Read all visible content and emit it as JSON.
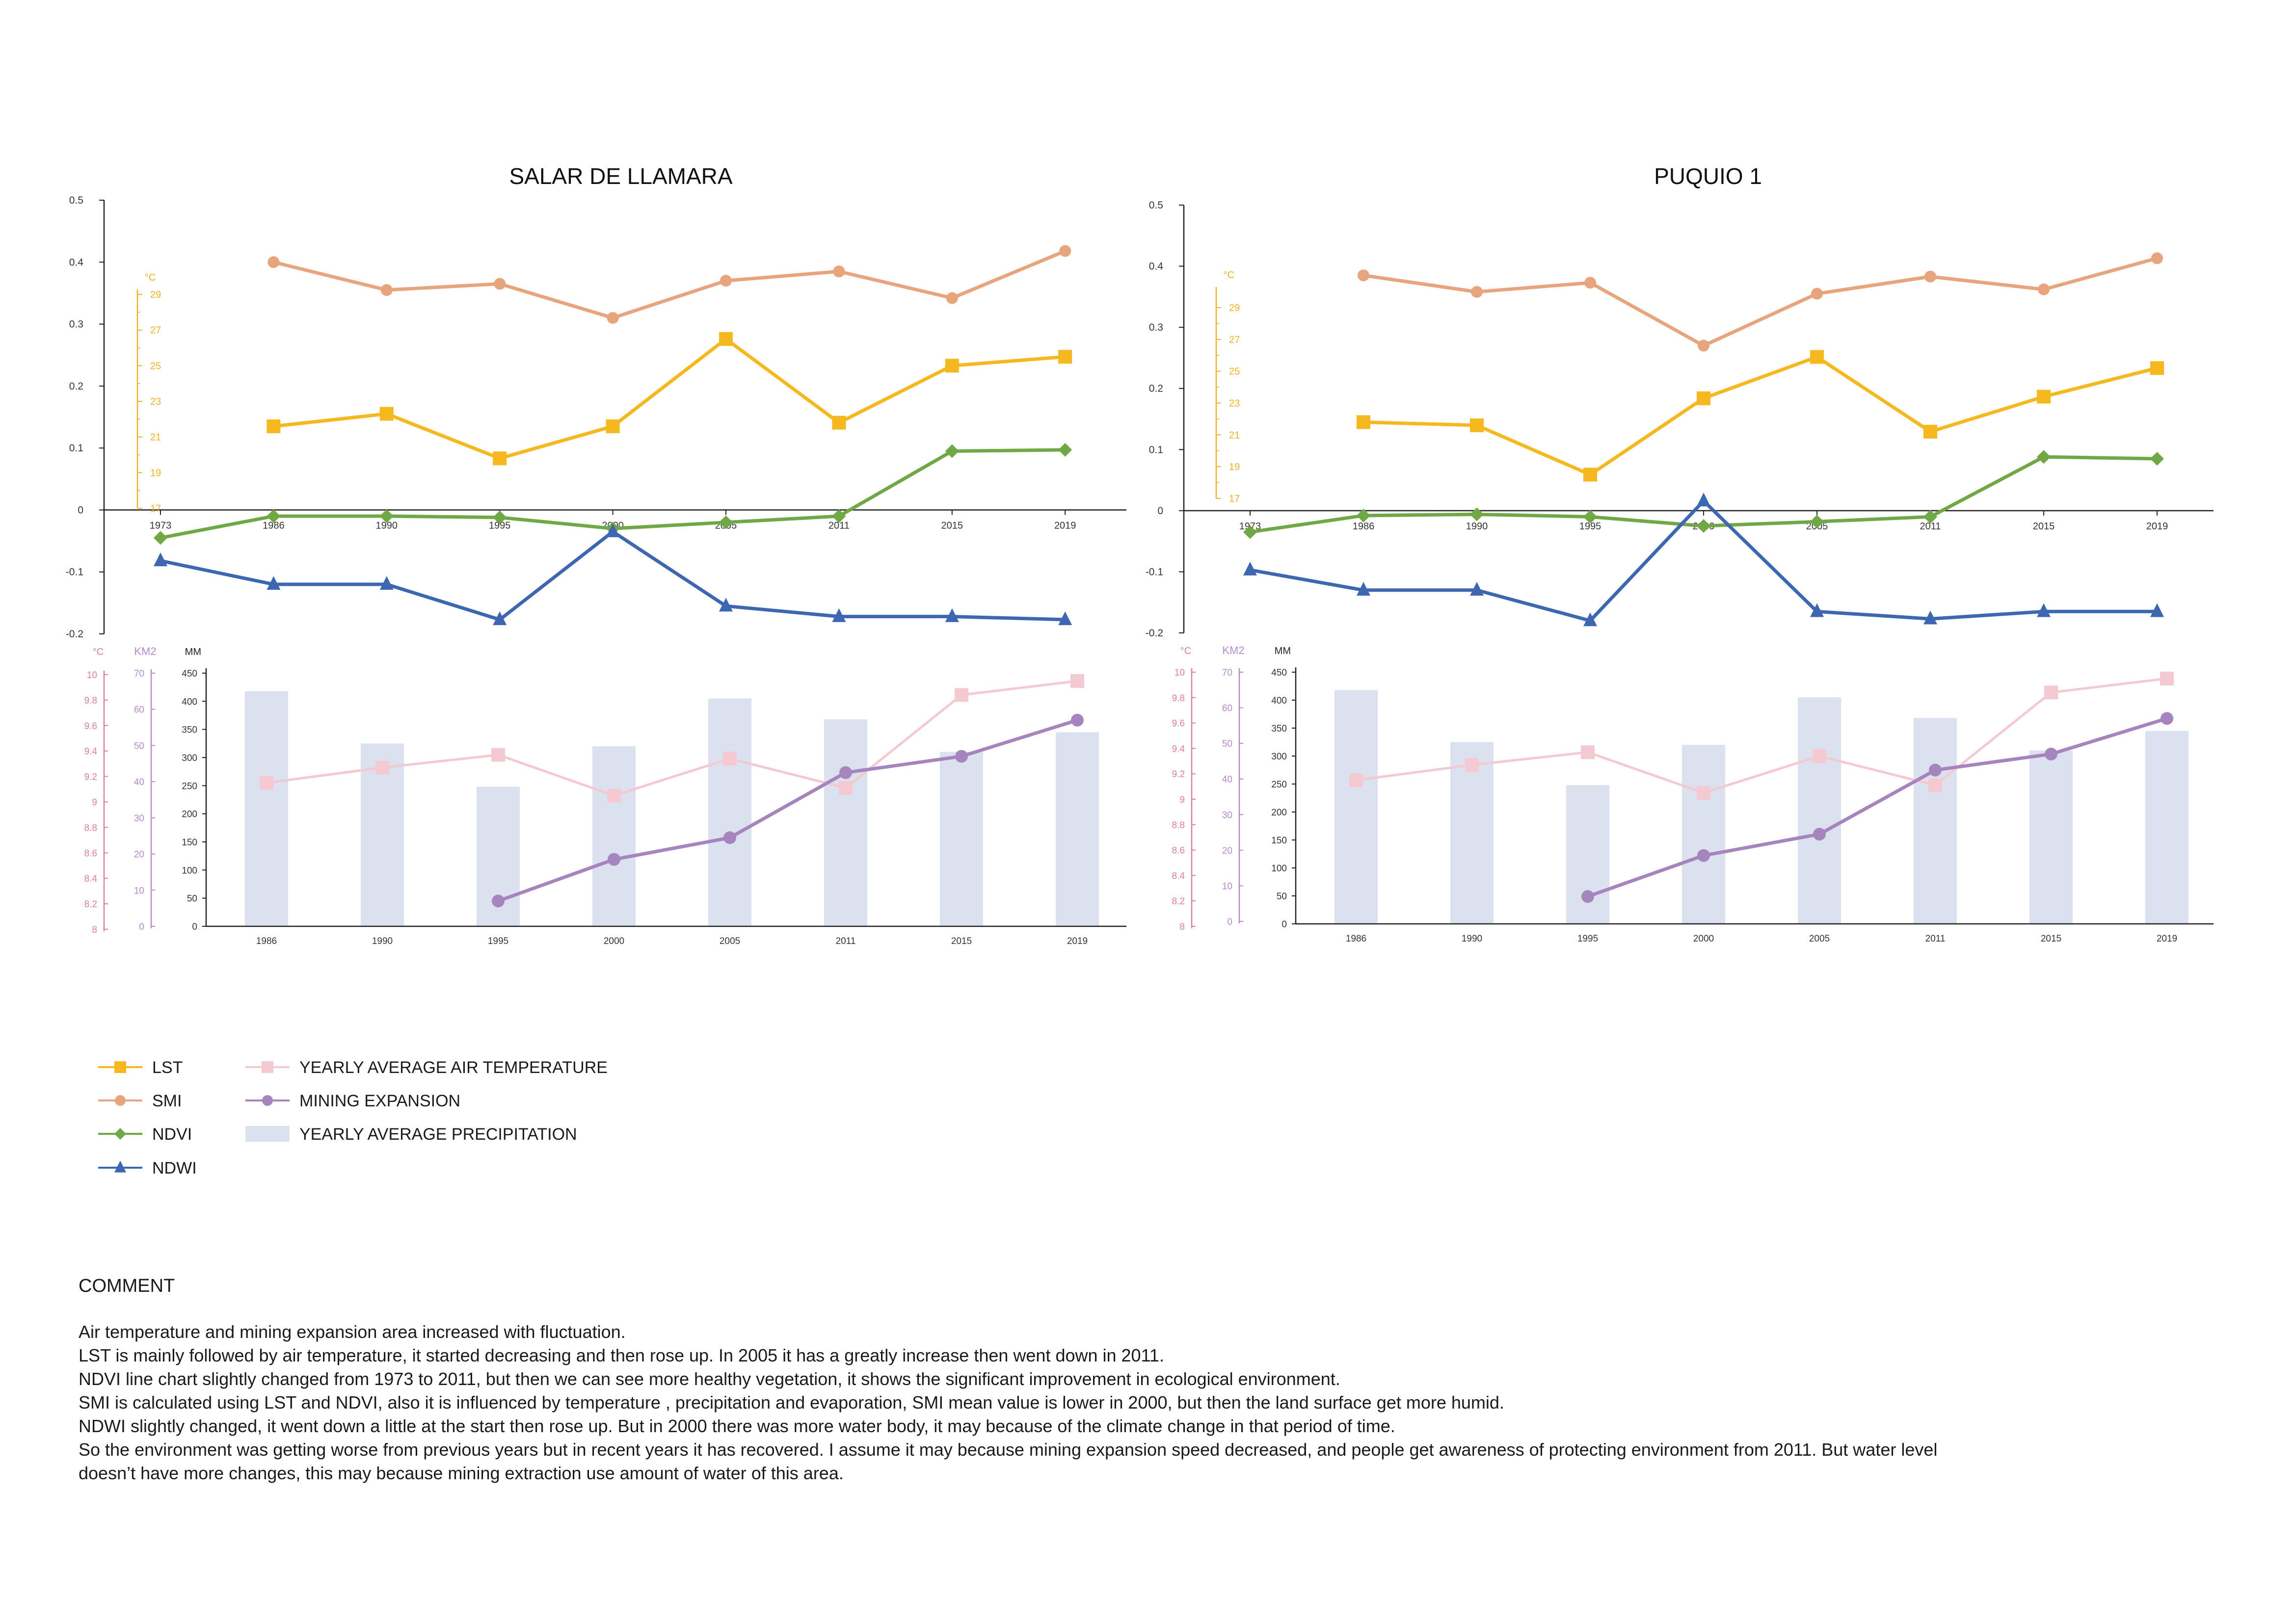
{
  "colors": {
    "lst": "#f5b91f",
    "smi": "#e8a47c",
    "ndvi": "#6fa845",
    "ndwi": "#3e67b1",
    "air_temp": "#f4c9d2",
    "mining": "#a684bd",
    "precip": "#dbe1ee",
    "axis_lst": "#f0b323",
    "axis_temp": "#e07f96",
    "axis_km2": "#b48ccc",
    "axis": "#222222"
  },
  "chart_data": [
    {
      "type": "line",
      "title": "SALAR DE LLAMARA",
      "x": [
        "1973",
        "1986",
        "1990",
        "1995",
        "2000",
        "2005",
        "2011",
        "2015",
        "2019"
      ],
      "ylim": [
        -0.2,
        0.5
      ],
      "yticks": [
        "0.5",
        "0.4",
        "0.3",
        "0.2",
        "0.1",
        "0",
        "-0.1",
        "-0.2"
      ],
      "secondary_axis": {
        "unit": "°C",
        "ylim": [
          17,
          29
        ],
        "ticks": [
          "29",
          "27",
          "25",
          "23",
          "21",
          "19",
          "17"
        ]
      },
      "series": [
        {
          "name": "SMI",
          "values": [
            null,
            0.4,
            0.355,
            0.365,
            0.31,
            0.37,
            0.385,
            0.342,
            0.418
          ]
        },
        {
          "name": "LST",
          "axis": "secondary",
          "values": [
            null,
            21.6,
            22.3,
            19.8,
            21.6,
            26.5,
            21.8,
            25.0,
            25.5
          ]
        },
        {
          "name": "NDVI",
          "values": [
            -0.045,
            -0.01,
            -0.01,
            -0.012,
            -0.03,
            -0.02,
            -0.01,
            0.095,
            0.097
          ]
        },
        {
          "name": "NDWI",
          "values": [
            -0.082,
            -0.12,
            -0.12,
            -0.177,
            -0.035,
            -0.155,
            -0.172,
            -0.172,
            -0.177
          ]
        }
      ]
    },
    {
      "type": "bar",
      "x": [
        "1986",
        "1990",
        "1995",
        "2000",
        "2005",
        "2011",
        "2015",
        "2019"
      ],
      "axes": [
        {
          "unit": "MM",
          "ylim": [
            0,
            450
          ],
          "ticks": [
            "450",
            "400",
            "350",
            "300",
            "250",
            "200",
            "150",
            "100",
            "50",
            "0"
          ]
        },
        {
          "unit": "KM2",
          "ylim": [
            0,
            70
          ],
          "ticks": [
            "70",
            "60",
            "50",
            "40",
            "30",
            "20",
            "10",
            "0"
          ]
        },
        {
          "unit": "°C",
          "ylim": [
            8,
            10
          ],
          "ticks": [
            "10",
            "9.8",
            "9.6",
            "9.4",
            "9.2",
            "9",
            "8.8",
            "8.6",
            "8.4",
            "8.2",
            "8"
          ]
        }
      ],
      "series": [
        {
          "name": "YEARLY AVERAGE PRECIPITATION",
          "axis": "MM",
          "values": [
            418,
            325,
            248,
            320,
            405,
            368,
            310,
            345
          ]
        },
        {
          "name": "YEARLY AVERAGE AIR TEMPERATURE",
          "axis": "°C",
          "values": [
            9.15,
            9.27,
            9.37,
            9.05,
            9.34,
            9.11,
            9.84,
            9.95
          ]
        },
        {
          "name": "MINING EXPANSION",
          "axis": "KM2",
          "values": [
            null,
            null,
            7,
            18.5,
            24.5,
            42.5,
            47,
            57
          ]
        }
      ]
    },
    {
      "type": "line",
      "title": "PUQUIO 1",
      "x": [
        "1973",
        "1986",
        "1990",
        "1995",
        "2000",
        "2005",
        "2011",
        "2015",
        "2019"
      ],
      "ylim": [
        -0.2,
        0.5
      ],
      "yticks": [
        "0.5",
        "0.4",
        "0.3",
        "0.2",
        "0.1",
        "0",
        "-0.1",
        "-0.2"
      ],
      "secondary_axis": {
        "unit": "°C",
        "ylim": [
          17,
          29
        ],
        "ticks": [
          "29",
          "27",
          "25",
          "23",
          "21",
          "19",
          "17"
        ]
      },
      "series": [
        {
          "name": "SMI",
          "values": [
            null,
            0.385,
            0.358,
            0.373,
            0.27,
            0.355,
            0.383,
            0.362,
            0.413
          ]
        },
        {
          "name": "LST",
          "axis": "secondary",
          "values": [
            null,
            21.8,
            21.6,
            18.5,
            23.3,
            25.9,
            21.2,
            23.4,
            25.2
          ]
        },
        {
          "name": "NDVI",
          "values": [
            -0.035,
            -0.008,
            -0.006,
            -0.01,
            -0.025,
            -0.018,
            -0.01,
            0.088,
            0.085
          ]
        },
        {
          "name": "NDWI",
          "values": [
            -0.097,
            -0.13,
            -0.13,
            -0.18,
            0.016,
            -0.165,
            -0.177,
            -0.165,
            -0.165
          ]
        }
      ]
    },
    {
      "type": "bar",
      "x": [
        "1986",
        "1990",
        "1995",
        "2000",
        "2005",
        "2011",
        "2015",
        "2019"
      ],
      "axes": [
        {
          "unit": "MM",
          "ylim": [
            0,
            450
          ],
          "ticks": [
            "450",
            "400",
            "350",
            "300",
            "250",
            "200",
            "150",
            "100",
            "50",
            "0"
          ]
        },
        {
          "unit": "KM2",
          "ylim": [
            0,
            70
          ],
          "ticks": [
            "70",
            "60",
            "50",
            "40",
            "30",
            "20",
            "10",
            "0"
          ]
        },
        {
          "unit": "°C",
          "ylim": [
            8,
            10
          ],
          "ticks": [
            "10",
            "9.8",
            "9.6",
            "9.4",
            "9.2",
            "9",
            "8.8",
            "8.6",
            "8.4",
            "8.2",
            "8"
          ]
        }
      ],
      "series": [
        {
          "name": "YEARLY AVERAGE PRECIPITATION",
          "axis": "MM",
          "values": [
            418,
            325,
            248,
            320,
            405,
            368,
            310,
            345
          ]
        },
        {
          "name": "YEARLY AVERAGE AIR TEMPERATURE",
          "axis": "°C",
          "values": [
            9.15,
            9.27,
            9.37,
            9.05,
            9.34,
            9.11,
            9.84,
            9.95
          ]
        },
        {
          "name": "MINING EXPANSION",
          "axis": "KM2",
          "values": [
            null,
            null,
            7,
            18.5,
            24.5,
            42.5,
            47,
            57
          ]
        }
      ]
    }
  ],
  "legend": [
    {
      "label": "LST",
      "series": "lst",
      "marker": "square"
    },
    {
      "label": "SMI",
      "series": "smi",
      "marker": "circle"
    },
    {
      "label": "NDVI",
      "series": "ndvi",
      "marker": "diamond"
    },
    {
      "label": "NDWI",
      "series": "ndwi",
      "marker": "triangle"
    },
    {
      "label": "YEARLY AVERAGE AIR TEMPERATURE",
      "series": "air_temp",
      "marker": "square"
    },
    {
      "label": "MINING EXPANSION",
      "series": "mining",
      "marker": "circle"
    },
    {
      "label": "YEARLY AVERAGE PRECIPITATION",
      "series": "precip",
      "marker": "bar"
    }
  ],
  "comment": {
    "title": "COMMENT",
    "lines": [
      "Air temperature and mining expansion area increased with fluctuation.",
      "LST is mainly followed by air temperature, it started decreasing and then rose up. In 2005 it has a greatly increase then went down in 2011.",
      "NDVI line chart slightly changed from 1973 to 2011, but then we can see more healthy vegetation, it shows the significant improvement in ecological environment.",
      "SMI is calculated using LST and NDVI, also it is influenced by temperature , precipitation and evaporation, SMI mean value is lower in 2000, but then the land surface get more humid.",
      "NDWI slightly changed, it went down a little at the start then rose up. But in 2000 there was more water body, it may because of the climate change in that period of time.",
      "So the environment was getting worse from previous years but in recent years it has recovered. I assume it may because mining expansion speed decreased, and people get awareness of protecting environment from 2011. But water level",
      "doesn’t have more changes, this may because mining extraction use amount of water of this area."
    ]
  }
}
